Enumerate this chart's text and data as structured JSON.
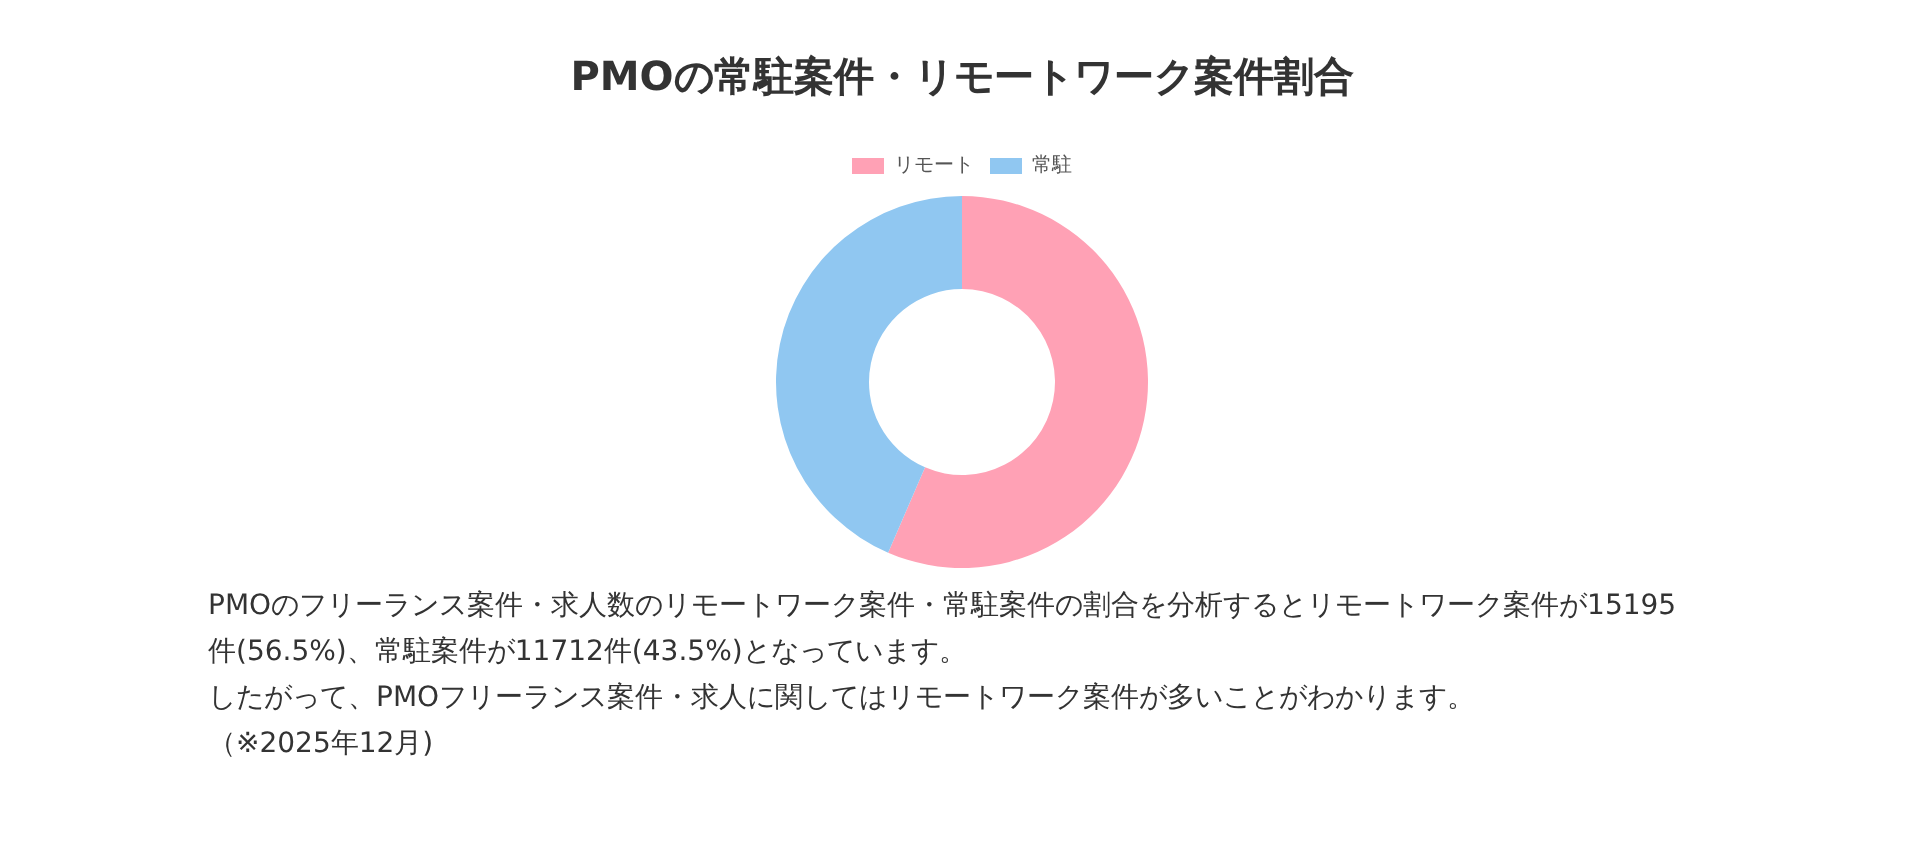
{
  "chart_data": {
    "type": "donut",
    "title": "PMOの常駐案件・リモートワーク案件割合",
    "categories": [
      "リモート",
      "常駐"
    ],
    "values": [
      56.5,
      43.5
    ],
    "colors": [
      "#ffa1b5",
      "#90c7f1"
    ],
    "legend": "top",
    "annotations": [
      "PMOのフリーランス案件・求人数のリモートワーク案件・常駐案件の割合を分析するとリモートワーク案件が15195件(56.5%)、常駐案件が11712件(43.5%)となっています。",
      "したがって、PMOフリーランス案件・求人に関してはリモートワーク案件が多いことがわかります。",
      "（※2025年12月)"
    ]
  }
}
